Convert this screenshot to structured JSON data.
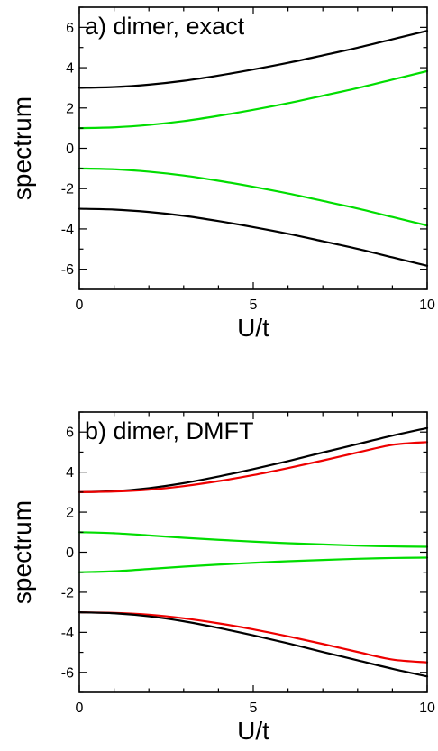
{
  "chart_data": [
    {
      "type": "line",
      "title": "a) dimer, exact",
      "xlabel": "U/t",
      "ylabel": "spectrum",
      "xlim": [
        0,
        10
      ],
      "ylim": [
        -7,
        7
      ],
      "xticks": [
        "0",
        "5",
        "10"
      ],
      "yticks": [
        "-6",
        "-4",
        "-2",
        "0",
        "2",
        "4",
        "6"
      ],
      "grid": false,
      "x": [
        0,
        1,
        2,
        3,
        4,
        5,
        6,
        7,
        8,
        9,
        10
      ],
      "series": [
        {
          "color": "#000000",
          "values": [
            3.0,
            3.04,
            3.16,
            3.35,
            3.61,
            3.91,
            4.24,
            4.61,
            4.99,
            5.41,
            5.83
          ]
        },
        {
          "color": "#00dd00",
          "values": [
            1.0,
            1.04,
            1.16,
            1.35,
            1.61,
            1.91,
            2.24,
            2.61,
            2.99,
            3.41,
            3.83
          ]
        },
        {
          "color": "#00dd00",
          "values": [
            -1.0,
            -1.04,
            -1.16,
            -1.35,
            -1.61,
            -1.91,
            -2.24,
            -2.61,
            -2.99,
            -3.41,
            -3.83
          ]
        },
        {
          "color": "#000000",
          "values": [
            -3.0,
            -3.04,
            -3.16,
            -3.35,
            -3.61,
            -3.91,
            -4.24,
            -4.61,
            -4.99,
            -5.41,
            -5.83
          ]
        }
      ]
    },
    {
      "type": "line",
      "title": "b) dimer, DMFT",
      "xlabel": "U/t",
      "ylabel": "spectrum",
      "xlim": [
        0,
        10
      ],
      "ylim": [
        -7,
        7
      ],
      "xticks": [
        "0",
        "5",
        "10"
      ],
      "yticks": [
        "-6",
        "-4",
        "-2",
        "0",
        "2",
        "4",
        "6"
      ],
      "grid": false,
      "x": [
        0,
        1,
        2,
        3,
        4,
        5,
        6,
        7,
        8,
        9,
        10
      ],
      "series": [
        {
          "color": "#000000",
          "values": [
            3.0,
            3.05,
            3.2,
            3.45,
            3.78,
            4.15,
            4.55,
            4.98,
            5.4,
            5.82,
            6.2
          ]
        },
        {
          "color": "#ee0000",
          "values": [
            3.0,
            3.03,
            3.12,
            3.3,
            3.55,
            3.85,
            4.2,
            4.58,
            4.98,
            5.36,
            5.5
          ]
        },
        {
          "color": "#00dd00",
          "values": [
            1.0,
            0.95,
            0.84,
            0.72,
            0.62,
            0.53,
            0.45,
            0.39,
            0.33,
            0.29,
            0.27
          ]
        },
        {
          "color": "#00dd00",
          "values": [
            -1.0,
            -0.95,
            -0.84,
            -0.72,
            -0.62,
            -0.53,
            -0.45,
            -0.39,
            -0.33,
            -0.29,
            -0.27
          ]
        },
        {
          "color": "#ee0000",
          "values": [
            -3.0,
            -3.03,
            -3.12,
            -3.3,
            -3.55,
            -3.85,
            -4.2,
            -4.58,
            -4.98,
            -5.36,
            -5.5
          ]
        },
        {
          "color": "#000000",
          "values": [
            -3.0,
            -3.05,
            -3.2,
            -3.45,
            -3.78,
            -4.15,
            -4.55,
            -4.98,
            -5.4,
            -5.82,
            -6.2
          ]
        }
      ]
    }
  ]
}
